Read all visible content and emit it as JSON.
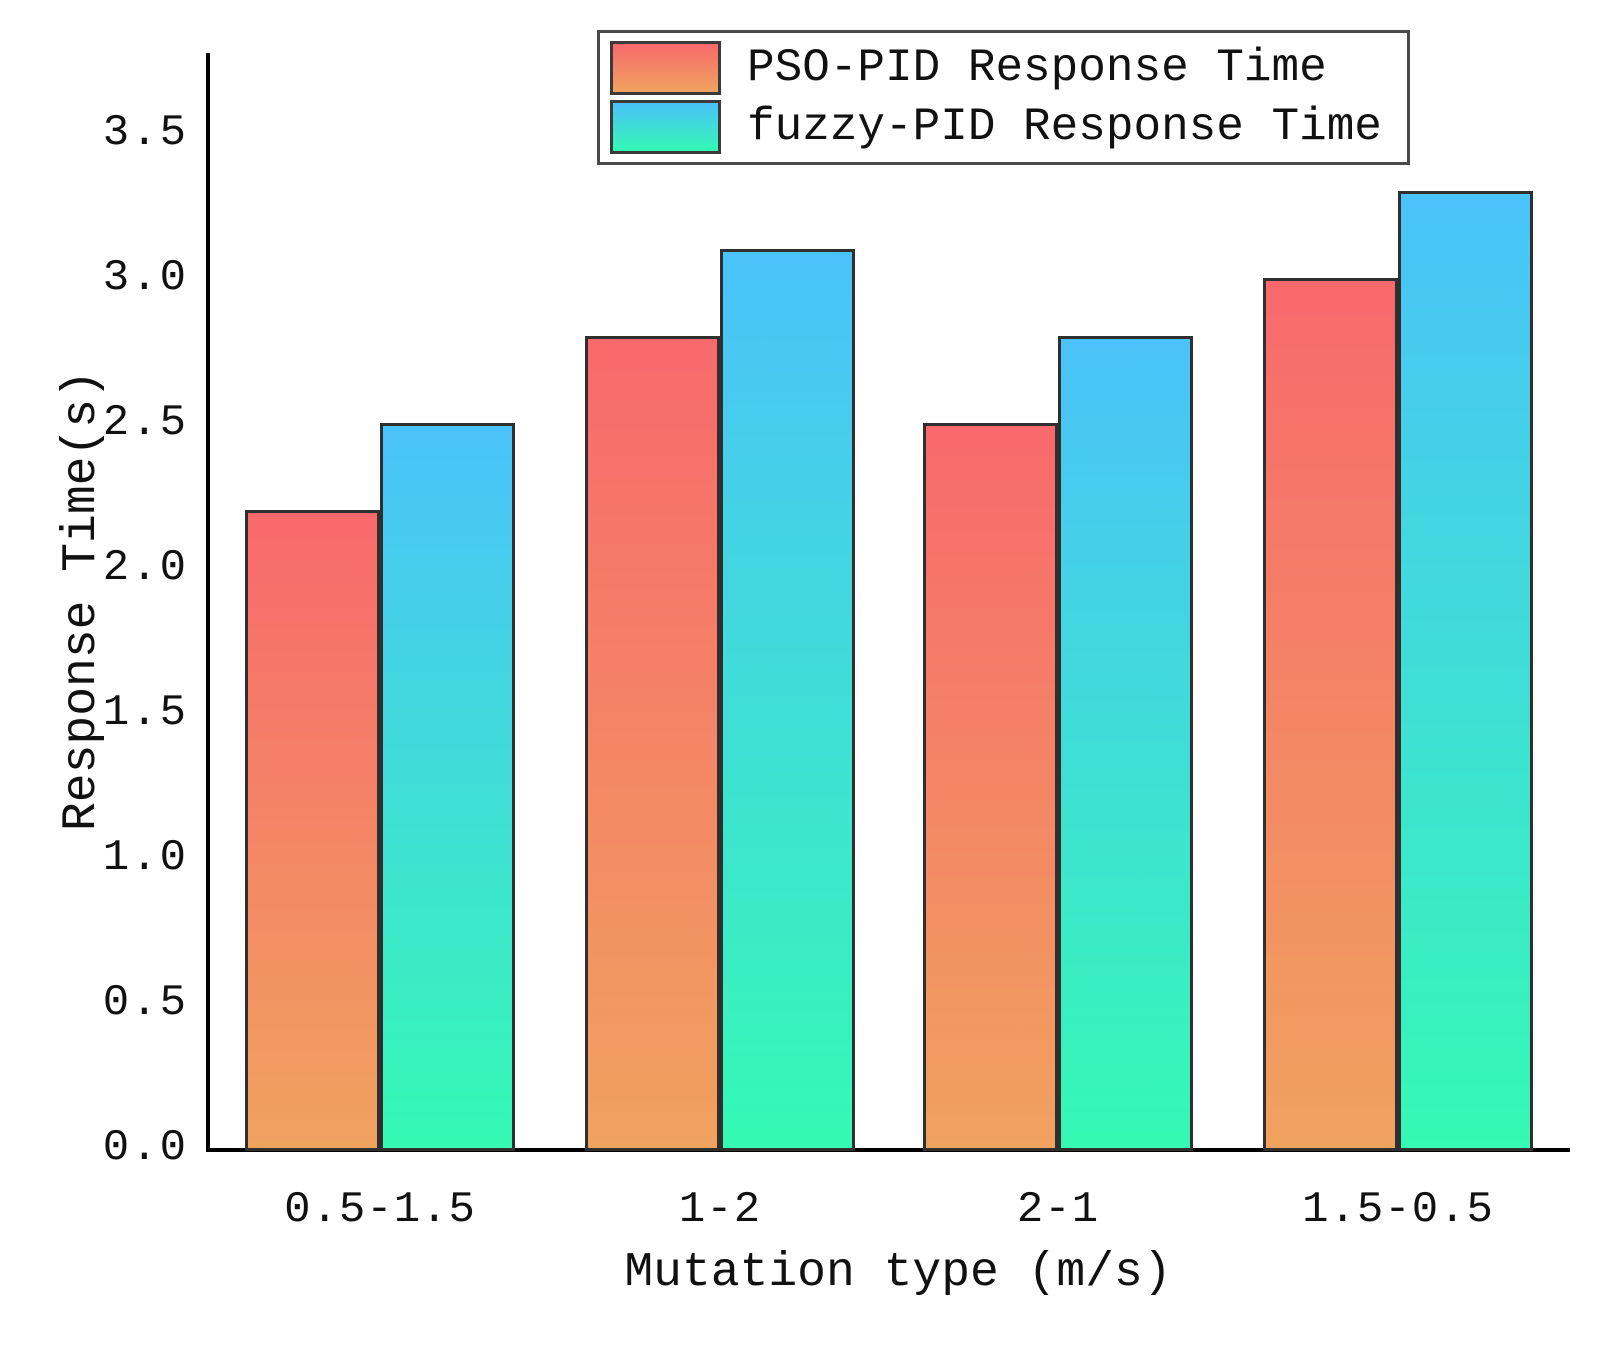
{
  "figure": {
    "background": "#ffffff",
    "axis_color": "#000000",
    "text_color": "#111111",
    "bar_border_color": "#2f2f2f"
  },
  "chart_data": {
    "type": "bar",
    "title": "",
    "xlabel": "Mutation type (m/s)",
    "ylabel": "Response Time(s)",
    "categories": [
      "0.5-1.5",
      "1-2",
      "2-1",
      "1.5-0.5"
    ],
    "series": [
      {
        "name": "PSO-PID Response Time",
        "values": [
          2.2,
          2.8,
          2.5,
          3.0
        ],
        "gradient_top": "#f8696c",
        "gradient_bottom": "#f0a25f"
      },
      {
        "name": "fuzzy-PID Response Time",
        "values": [
          2.5,
          3.1,
          2.8,
          3.3
        ],
        "gradient_top": "#4ac2fa",
        "gradient_bottom": "#35f9b4"
      }
    ],
    "ylim": [
      0,
      3.75
    ],
    "yticks": [
      "0.0",
      "0.5",
      "1.0",
      "1.5",
      "2.0",
      "2.5",
      "3.0",
      "3.5"
    ],
    "ytick_values": [
      0,
      0.5,
      1.0,
      1.5,
      2.0,
      2.5,
      3.0,
      3.5
    ],
    "grid": false,
    "legend_position": "top-center"
  }
}
